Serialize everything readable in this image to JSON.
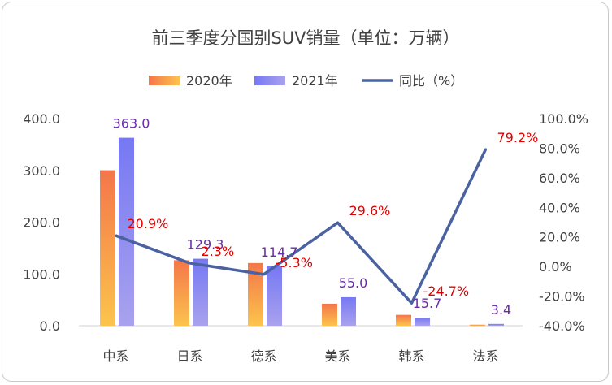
{
  "chart_data": {
    "type": "bar",
    "title": "前三季度分国别SUV销量（单位：万辆）",
    "categories": [
      "中系",
      "日系",
      "德系",
      "美系",
      "韩系",
      "法系"
    ],
    "series": [
      {
        "name": "2020年",
        "values": [
          300.3,
          126.4,
          121.0,
          42.4,
          20.9,
          1.9
        ]
      },
      {
        "name": "2021年",
        "values": [
          363.0,
          129.3,
          114.7,
          55.0,
          15.7,
          3.4
        ]
      }
    ],
    "line_series": {
      "name": "同比（%）",
      "values": [
        20.9,
        2.3,
        -5.3,
        29.6,
        -24.7,
        79.2
      ]
    },
    "bar_labels": [
      "363.0",
      "129.3",
      "114.7",
      "55.0",
      "15.7",
      "3.4"
    ],
    "line_labels": [
      "20.9%",
      "2.3%",
      "-5.3%",
      "29.6%",
      "-24.7%",
      "79.2%"
    ],
    "y_left": {
      "min": 0,
      "max": 400,
      "ticks": [
        "0.0",
        "100.0",
        "200.0",
        "300.0",
        "400.0"
      ]
    },
    "y_right": {
      "min": -40,
      "max": 100,
      "ticks": [
        "-40.0%",
        "-20.0%",
        "0.0%",
        "20.0%",
        "40.0%",
        "60.0%",
        "80.0%",
        "100.0%"
      ]
    },
    "legend_position": "top",
    "grid": false,
    "colors": {
      "bar2020": "#f8a04a",
      "bar2021": "#7a7cf4",
      "line": "#4a62a0",
      "line_label": "#e00000",
      "bar_label": "#6a2ba8"
    }
  }
}
